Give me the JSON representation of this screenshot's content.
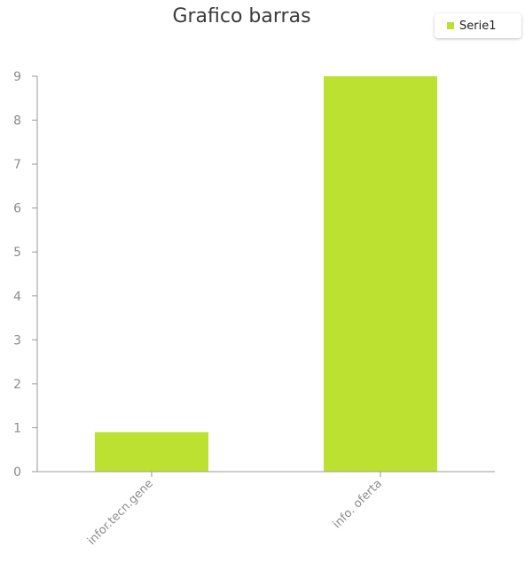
{
  "chart_data": {
    "type": "bar",
    "title": "Grafico barras",
    "categories": [
      "infor.tecn.gene",
      "info. oferta"
    ],
    "series": [
      {
        "name": "Serie1",
        "values": [
          0.9,
          9
        ],
        "color": "#bde130"
      }
    ],
    "ylim": [
      0,
      9
    ],
    "yticks": [
      0,
      1,
      2,
      3,
      4,
      5,
      6,
      7,
      8,
      9
    ],
    "grid": false,
    "legend_position": "top-right",
    "colors": {
      "axis": "#9a9a9a",
      "tick_label": "#8c8c8c",
      "title": "#3a3a3a"
    }
  }
}
